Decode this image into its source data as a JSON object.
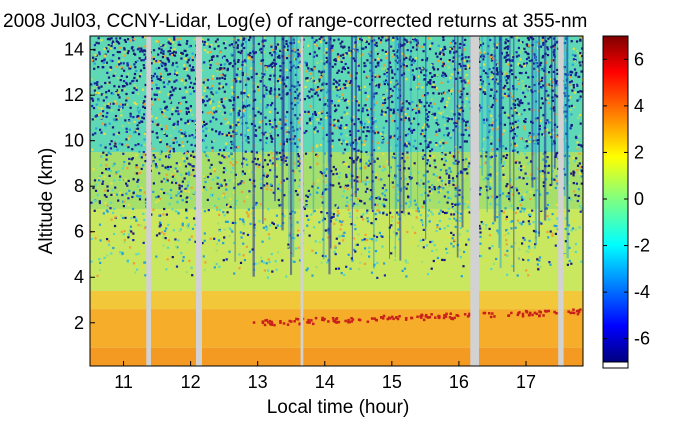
{
  "chart_data": {
    "type": "heatmap",
    "title": "2008 Jul03, CCNY-Lidar, Log(e) of range-corrected returns at 355-nm",
    "xlabel": "Local time (hour)",
    "ylabel": "Altitude (km)",
    "xlim": [
      10.5,
      17.85
    ],
    "ylim": [
      0.1,
      14.6
    ],
    "x_ticks": [
      11,
      12,
      13,
      14,
      15,
      16,
      17
    ],
    "y_ticks": [
      2,
      4,
      6,
      8,
      10,
      12,
      14
    ],
    "data_gaps_hours": [
      [
        11.34,
        11.41
      ],
      [
        12.08,
        12.17
      ],
      [
        13.64,
        13.68
      ],
      [
        16.17,
        16.3
      ],
      [
        17.48,
        17.56
      ]
    ],
    "colorbar": {
      "ticks": [
        -6,
        -4,
        -2,
        0,
        2,
        4,
        6
      ],
      "range": [
        -7,
        7
      ],
      "colormap": "jet"
    },
    "colors": {
      "gap": "#d2d2d2",
      "surface_layer": "#f49a22",
      "boundary_layer": "#f2c83a",
      "free_troposphere": "#a6e06a",
      "upper": "#5ed8b5",
      "noise_low": "#14187a",
      "aerosol_top": "#c8201a"
    }
  }
}
